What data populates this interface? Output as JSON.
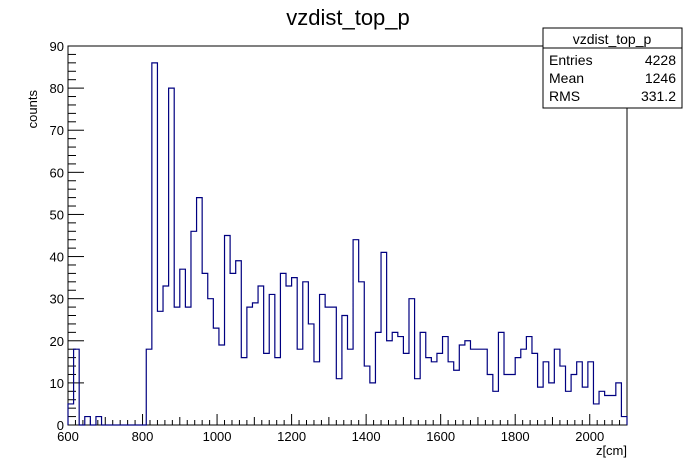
{
  "chart_data": {
    "type": "bar",
    "title": "vzdist_top_p",
    "xlabel": "z[cm]",
    "ylabel": "counts",
    "xlim": [
      600,
      2100
    ],
    "ylim": [
      0,
      90
    ],
    "bin_width": 15,
    "x_ticks": [
      600,
      800,
      1000,
      1200,
      1400,
      1600,
      1800,
      2000
    ],
    "y_ticks": [
      0,
      10,
      20,
      30,
      40,
      50,
      60,
      70,
      80,
      90
    ],
    "x_minor_step": 20,
    "y_minor_step": 2,
    "histogram_style": "step",
    "line_color": "#000080",
    "grid": false,
    "legend": "top-right stats box",
    "bin_edges_start": 600,
    "counts": [
      5,
      18,
      0,
      2,
      0,
      2,
      0,
      0,
      0,
      0,
      0,
      0,
      0,
      0,
      18,
      86,
      27,
      33,
      80,
      28,
      37,
      28,
      46,
      54,
      36,
      30,
      23,
      19,
      45,
      36,
      39,
      16,
      28,
      29,
      33,
      17,
      31,
      16,
      36,
      33,
      35,
      18,
      34,
      24,
      15,
      31,
      28,
      28,
      11,
      26,
      18,
      44,
      34,
      14,
      10,
      22,
      41,
      20,
      22,
      21,
      17,
      30,
      11,
      22,
      16,
      15,
      17,
      21,
      15,
      13,
      19,
      20,
      18,
      18,
      18,
      12,
      8,
      22,
      12,
      12,
      16,
      18,
      21,
      17,
      9,
      15,
      10,
      18,
      14,
      8,
      12,
      15,
      9,
      15,
      5,
      8,
      7,
      7,
      10,
      2
    ]
  },
  "stats": {
    "name": "vzdist_top_p",
    "rows": [
      {
        "label": "Entries",
        "value": "4228"
      },
      {
        "label": "Mean",
        "value": "1246"
      },
      {
        "label": "RMS",
        "value": "331.2"
      }
    ]
  }
}
